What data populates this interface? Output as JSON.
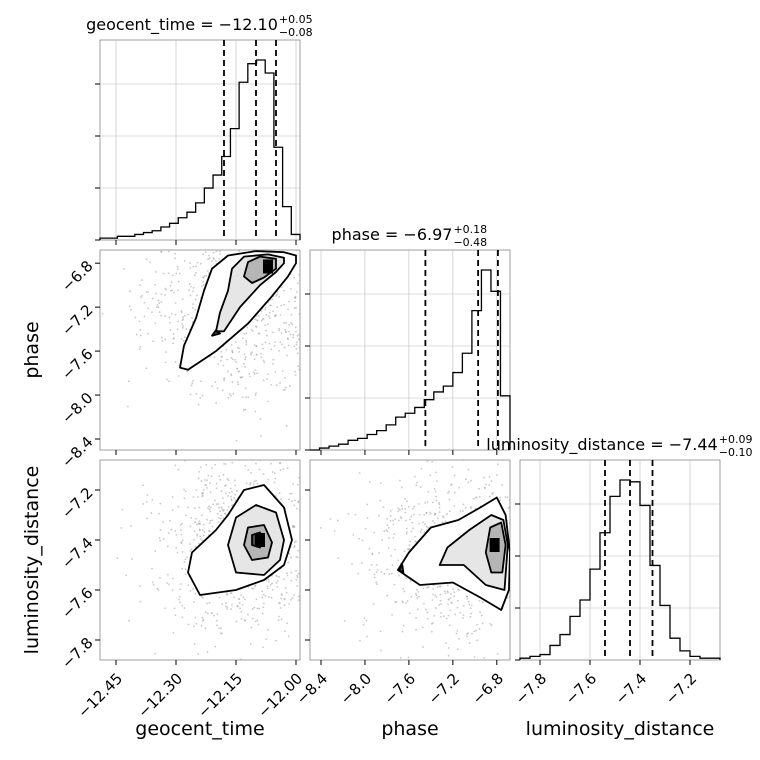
{
  "chart_data": {
    "type": "corner",
    "parameters": [
      {
        "key": "geocent_time",
        "label": "geocent_time",
        "range": [
          -12.49,
          -11.99
        ],
        "ticks": [
          "−12.45",
          "−12.30",
          "−12.15",
          "−12.00"
        ],
        "tick_values": [
          -12.45,
          -12.3,
          -12.15,
          -12.0
        ],
        "title": {
          "name": "geocent_time",
          "median": "−12.10",
          "plus": "+0.05",
          "minus": "−0.08"
        },
        "quantiles": [
          -12.18,
          -12.1,
          -12.05
        ],
        "hist": [
          0.01,
          0.01,
          0.02,
          0.02,
          0.03,
          0.04,
          0.05,
          0.07,
          0.09,
          0.12,
          0.15,
          0.2,
          0.28,
          0.35,
          0.45,
          0.6,
          0.85,
          0.95,
          0.97,
          0.9,
          0.5,
          0.18,
          0.03
        ]
      },
      {
        "key": "phase",
        "label": "phase",
        "range": [
          -8.5,
          -6.68
        ],
        "ticks": [
          "−8.4",
          "−8.0",
          "−7.6",
          "−7.2",
          "−6.8"
        ],
        "tick_values": [
          -8.4,
          -8.0,
          -7.6,
          -7.2,
          -6.8
        ],
        "title": {
          "name": "phase",
          "median": "−6.97",
          "plus": "+0.18",
          "minus": "−0.48"
        },
        "quantiles": [
          -7.45,
          -6.97,
          -6.79
        ],
        "hist": [
          0.0,
          0.01,
          0.02,
          0.03,
          0.05,
          0.06,
          0.08,
          0.1,
          0.13,
          0.17,
          0.19,
          0.22,
          0.26,
          0.3,
          0.33,
          0.4,
          0.5,
          0.72,
          0.93,
          0.82,
          0.28
        ]
      },
      {
        "key": "luminosity_distance",
        "label": "luminosity_distance",
        "range": [
          -7.88,
          -7.08
        ],
        "ticks": [
          "−7.8",
          "−7.6",
          "−7.4",
          "−7.2"
        ],
        "tick_values": [
          -7.8,
          -7.6,
          -7.4,
          -7.2
        ],
        "title": {
          "name": "luminosity_distance",
          "median": "−7.44",
          "plus": "+0.09",
          "minus": "−0.10"
        },
        "quantiles": [
          -7.54,
          -7.44,
          -7.35
        ],
        "hist": [
          0.01,
          0.02,
          0.03,
          0.08,
          0.14,
          0.24,
          0.33,
          0.5,
          0.7,
          0.9,
          0.99,
          0.98,
          0.85,
          0.52,
          0.3,
          0.12,
          0.05,
          0.02,
          0.01,
          0.01
        ]
      }
    ],
    "pairs": [
      {
        "x": "geocent_time",
        "y": "phase",
        "mode": [
          -12.07,
          -6.83
        ],
        "contours": [
          [
            [
              -12.0,
              -6.73
            ],
            [
              -12.03,
              -6.7
            ],
            [
              -12.1,
              -6.69
            ],
            [
              -12.17,
              -6.73
            ],
            [
              -12.21,
              -6.85
            ],
            [
              -12.23,
              -7.05
            ],
            [
              -12.25,
              -7.3
            ],
            [
              -12.28,
              -7.55
            ],
            [
              -12.29,
              -7.75
            ],
            [
              -12.27,
              -7.77
            ],
            [
              -12.2,
              -7.6
            ],
            [
              -12.12,
              -7.35
            ],
            [
              -12.06,
              -7.1
            ],
            [
              -12.02,
              -6.92
            ],
            [
              -12.0,
              -6.8
            ]
          ],
          [
            [
              -12.03,
              -6.75
            ],
            [
              -12.07,
              -6.72
            ],
            [
              -12.13,
              -6.74
            ],
            [
              -12.16,
              -6.85
            ],
            [
              -12.17,
              -7.05
            ],
            [
              -12.19,
              -7.25
            ],
            [
              -12.2,
              -7.42
            ],
            [
              -12.18,
              -7.42
            ],
            [
              -12.14,
              -7.2
            ],
            [
              -12.09,
              -7.0
            ],
            [
              -12.05,
              -6.88
            ],
            [
              -12.03,
              -6.8
            ]
          ],
          [
            [
              -12.05,
              -6.76
            ],
            [
              -12.09,
              -6.74
            ],
            [
              -12.12,
              -6.79
            ],
            [
              -12.13,
              -6.92
            ],
            [
              -12.11,
              -6.98
            ],
            [
              -12.08,
              -6.93
            ],
            [
              -12.05,
              -6.85
            ]
          ],
          [
            [
              -12.2,
              -7.41
            ],
            [
              -12.21,
              -7.46
            ],
            [
              -12.19,
              -7.44
            ]
          ]
        ]
      },
      {
        "x": "geocent_time",
        "y": "luminosity_distance",
        "mode": [
          -12.09,
          -7.4
        ],
        "contours": [
          [
            [
              -12.01,
              -7.4
            ],
            [
              -12.03,
              -7.27
            ],
            [
              -12.08,
              -7.18
            ],
            [
              -12.13,
              -7.2
            ],
            [
              -12.17,
              -7.3
            ],
            [
              -12.2,
              -7.36
            ],
            [
              -12.26,
              -7.45
            ],
            [
              -12.27,
              -7.53
            ],
            [
              -12.24,
              -7.62
            ],
            [
              -12.15,
              -7.6
            ],
            [
              -12.08,
              -7.56
            ],
            [
              -12.03,
              -7.5
            ]
          ],
          [
            [
              -12.03,
              -7.4
            ],
            [
              -12.05,
              -7.29
            ],
            [
              -12.1,
              -7.26
            ],
            [
              -12.15,
              -7.31
            ],
            [
              -12.17,
              -7.42
            ],
            [
              -12.15,
              -7.53
            ],
            [
              -12.08,
              -7.54
            ],
            [
              -12.04,
              -7.48
            ]
          ],
          [
            [
              -12.06,
              -7.41
            ],
            [
              -12.08,
              -7.34
            ],
            [
              -12.12,
              -7.35
            ],
            [
              -12.13,
              -7.42
            ],
            [
              -12.11,
              -7.48
            ],
            [
              -12.07,
              -7.47
            ]
          ],
          [
            [
              -12.08,
              -7.4
            ],
            [
              -12.09,
              -7.37
            ],
            [
              -12.11,
              -7.38
            ],
            [
              -12.11,
              -7.42
            ],
            [
              -12.09,
              -7.43
            ]
          ]
        ]
      },
      {
        "x": "phase",
        "y": "luminosity_distance",
        "mode": [
          -6.82,
          -7.42
        ],
        "contours": [
          [
            [
              -6.68,
              -7.45
            ],
            [
              -6.72,
              -7.3
            ],
            [
              -6.8,
              -7.23
            ],
            [
              -6.95,
              -7.27
            ],
            [
              -7.15,
              -7.32
            ],
            [
              -7.4,
              -7.35
            ],
            [
              -7.6,
              -7.45
            ],
            [
              -7.7,
              -7.52
            ],
            [
              -7.5,
              -7.58
            ],
            [
              -7.2,
              -7.57
            ],
            [
              -6.95,
              -7.63
            ],
            [
              -6.76,
              -7.68
            ],
            [
              -6.69,
              -7.6
            ]
          ],
          [
            [
              -6.7,
              -7.42
            ],
            [
              -6.74,
              -7.32
            ],
            [
              -6.85,
              -7.3
            ],
            [
              -7.05,
              -7.36
            ],
            [
              -7.25,
              -7.43
            ],
            [
              -7.32,
              -7.5
            ],
            [
              -7.1,
              -7.5
            ],
            [
              -6.9,
              -7.58
            ],
            [
              -6.73,
              -7.6
            ]
          ],
          [
            [
              -6.72,
              -7.42
            ],
            [
              -6.76,
              -7.33
            ],
            [
              -6.86,
              -7.35
            ],
            [
              -6.9,
              -7.45
            ],
            [
              -6.85,
              -7.53
            ],
            [
              -6.75,
              -7.53
            ]
          ],
          [
            [
              -7.66,
              -7.5
            ],
            [
              -7.69,
              -7.52
            ],
            [
              -7.65,
              -7.53
            ]
          ]
        ]
      }
    ]
  }
}
